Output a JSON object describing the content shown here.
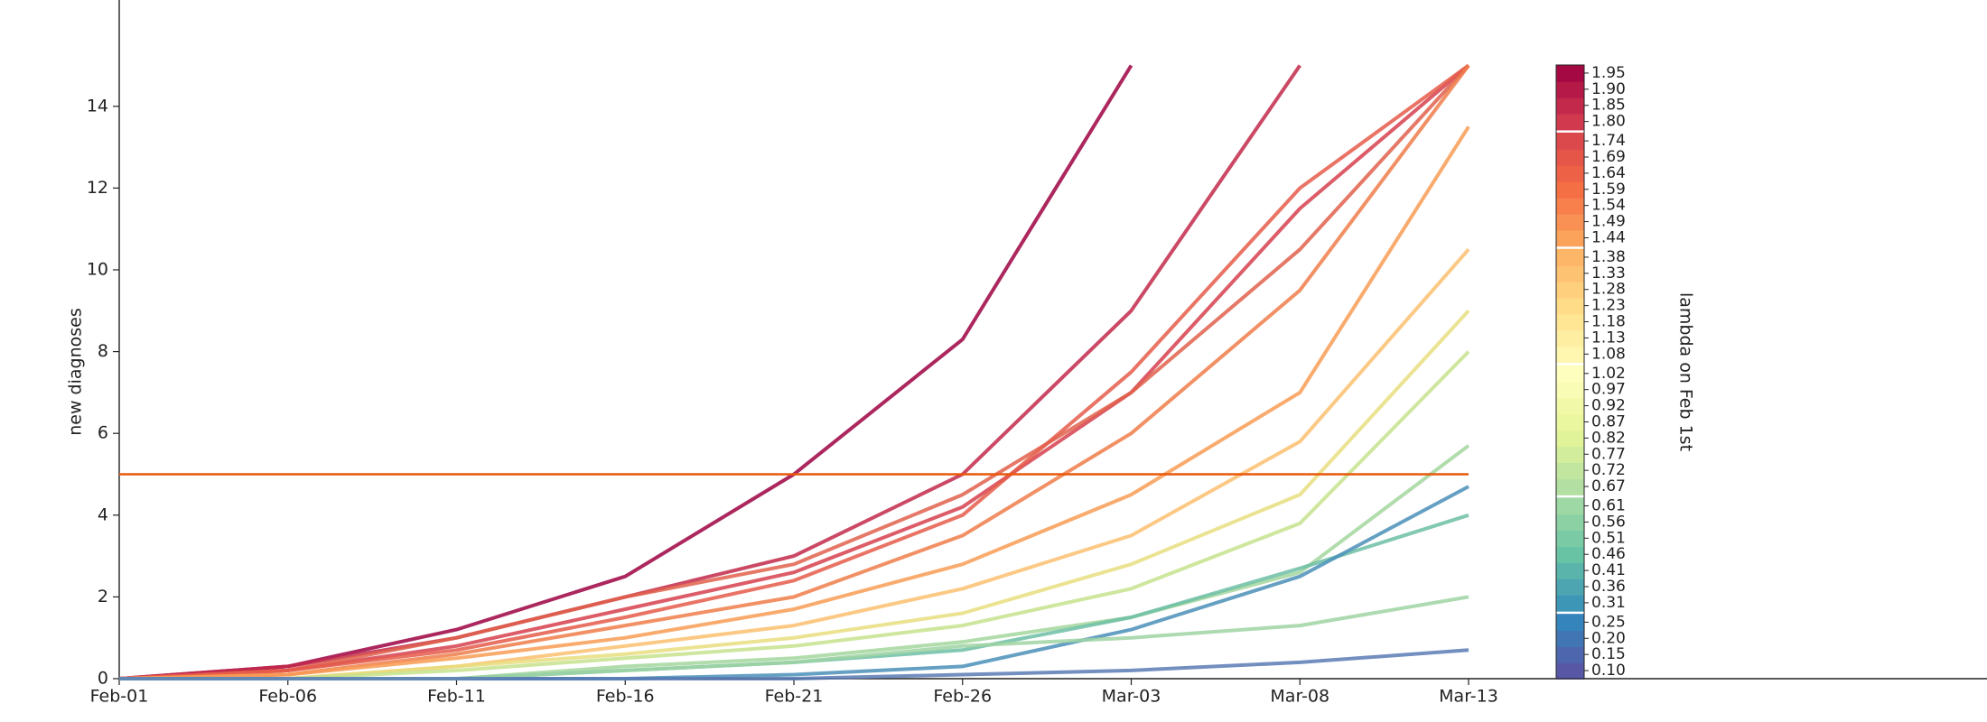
{
  "chart_data": {
    "type": "line",
    "ylabel": "new diagnoses",
    "categories": [
      "Feb-01",
      "Feb-06",
      "Feb-11",
      "Feb-16",
      "Feb-21",
      "Feb-26",
      "Mar-03",
      "Mar-08",
      "Mar-13"
    ],
    "ylim": [
      0,
      16.6
    ],
    "yticks": [
      0,
      2,
      4,
      6,
      8,
      10,
      12,
      14
    ],
    "hline": {
      "value": 5,
      "color": "#e8590c"
    },
    "series": [
      {
        "color": "#9e0142",
        "values": [
          0,
          0.3,
          1.2,
          2.5,
          5.0,
          8.3,
          15,
          null,
          null
        ]
      },
      {
        "color": "#c2294a",
        "values": [
          0,
          0.3,
          1,
          2,
          3,
          5,
          9,
          15,
          null
        ]
      },
      {
        "color": "#d6404e",
        "values": [
          0,
          0.2,
          0.8,
          1.7,
          2.6,
          4.2,
          7,
          11.5,
          15
        ]
      },
      {
        "color": "#e0604b",
        "values": [
          0,
          0.2,
          1,
          2,
          2.8,
          4.5,
          7,
          10.5,
          15
        ]
      },
      {
        "color": "#e55c4a",
        "values": [
          0,
          0.2,
          0.7,
          1.5,
          2.4,
          4,
          7.5,
          12,
          15
        ]
      },
      {
        "color": "#f07c4a",
        "values": [
          0,
          0.1,
          0.6,
          1.3,
          2,
          3.5,
          6,
          9.5,
          15
        ]
      },
      {
        "color": "#f89c55",
        "values": [
          0,
          0.1,
          0.5,
          1,
          1.7,
          2.8,
          4.5,
          7,
          13.5
        ]
      },
      {
        "color": "#fcc070",
        "values": [
          0,
          0,
          0.3,
          0.8,
          1.3,
          2.2,
          3.5,
          5.8,
          10.5
        ]
      },
      {
        "color": "#e8de7f",
        "values": [
          0,
          0,
          0.3,
          0.6,
          1,
          1.6,
          2.8,
          4.5,
          9
        ]
      },
      {
        "color": "#c5e28c",
        "values": [
          0,
          0,
          0.2,
          0.5,
          0.8,
          1.3,
          2.2,
          3.8,
          8
        ]
      },
      {
        "color": "#a3d69d",
        "values": [
          0,
          0,
          0,
          0.3,
          0.5,
          0.9,
          1.5,
          2.6,
          5.7
        ]
      },
      {
        "color": "#6cbea4",
        "values": [
          0,
          0,
          0,
          0.2,
          0.4,
          0.7,
          1.5,
          2.7,
          4
        ]
      },
      {
        "color": "#4a8fb8",
        "values": [
          0,
          0,
          0,
          0,
          0.1,
          0.3,
          1.2,
          2.5,
          4.7
        ]
      },
      {
        "color": "#9fd3a3",
        "values": [
          0,
          0,
          0,
          0.2,
          0.4,
          0.8,
          1,
          1.3,
          2
        ]
      },
      {
        "color": "#5b7bb5",
        "values": [
          0,
          0,
          0,
          0,
          0,
          0.1,
          0.2,
          0.4,
          0.7
        ]
      }
    ],
    "colorbar": {
      "label": "lambda on Feb 1st",
      "clim": [
        0.075,
        1.975
      ],
      "cmap": [
        "#5e4fa2",
        "#3288bd",
        "#66c2a5",
        "#abdda4",
        "#e6f598",
        "#ffffbf",
        "#fee08b",
        "#fdae61",
        "#f46d43",
        "#d53e4f",
        "#9e0142"
      ],
      "ticks": [
        {
          "value": 0.1,
          "label": "0.10"
        },
        0.15,
        {
          "value": 0.2,
          "label": "0.20"
        },
        0.25,
        0.31,
        0.36,
        0.41,
        0.46,
        0.51,
        0.56,
        0.61,
        0.67,
        0.72,
        0.77,
        0.82,
        0.87,
        0.92,
        0.97,
        1.02,
        1.08,
        1.13,
        1.18,
        1.23,
        1.28,
        1.33,
        1.38,
        1.44,
        1.49,
        1.54,
        1.59,
        1.64,
        1.69,
        1.74,
        {
          "value": 1.8,
          "label": "1.80"
        },
        1.85,
        {
          "value": 1.9,
          "label": "1.90"
        },
        1.95
      ]
    }
  }
}
